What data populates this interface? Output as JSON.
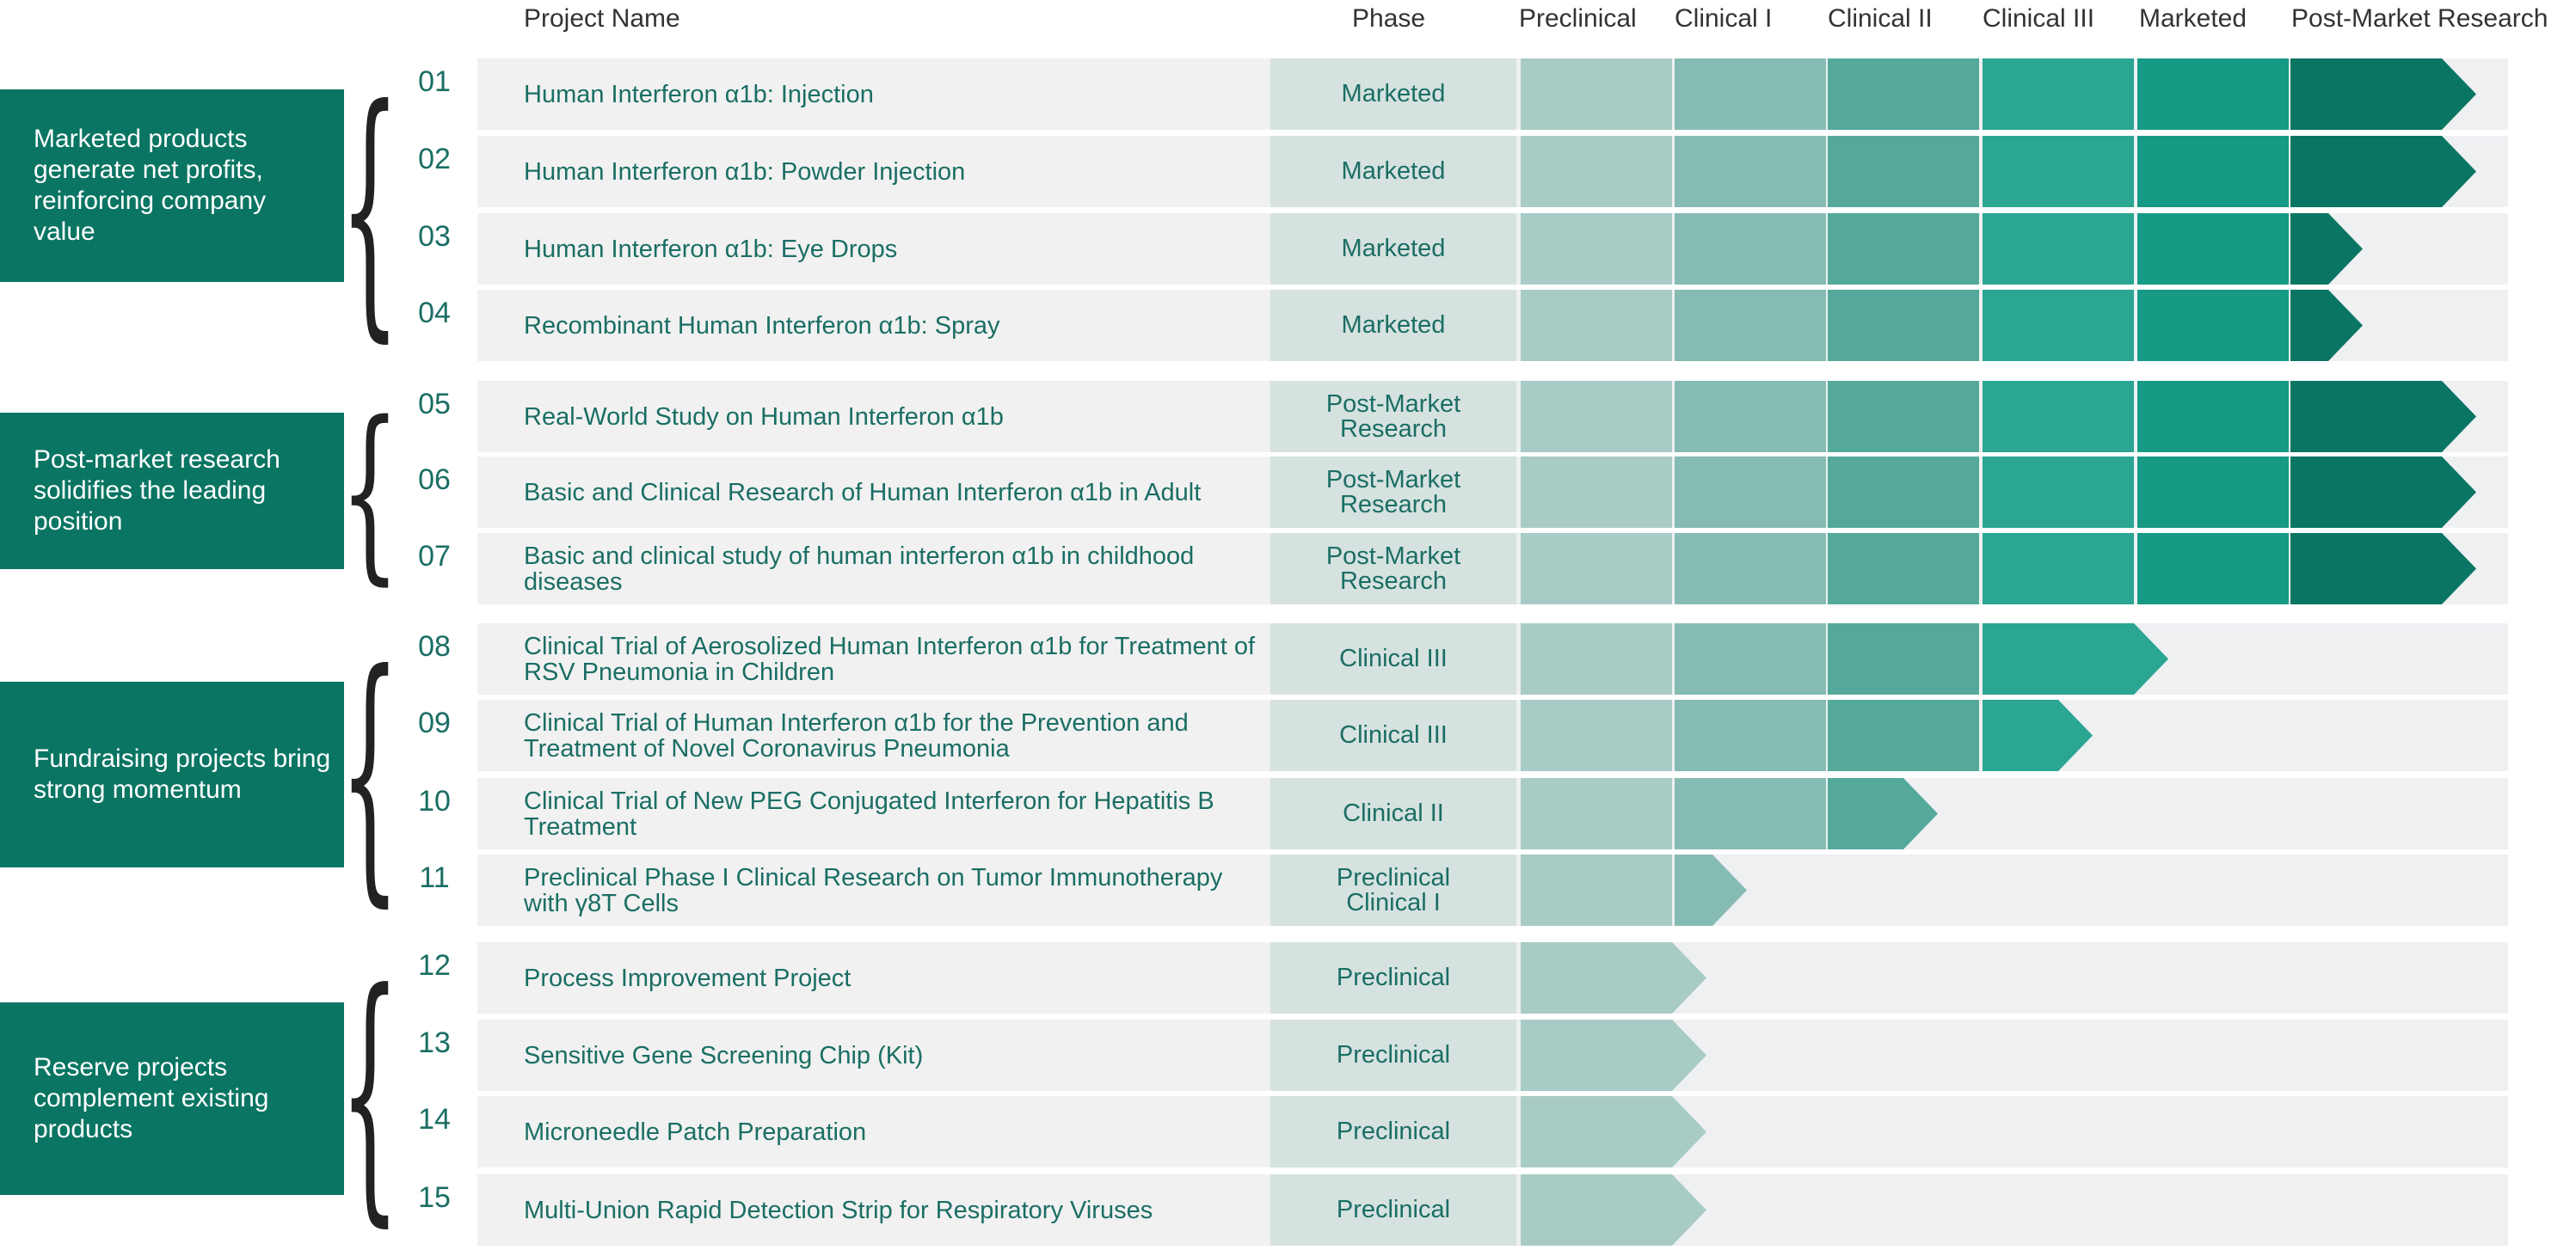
{
  "headers": {
    "project_name": "Project Name",
    "phase": "Phase",
    "stages": [
      "Preclinical",
      "Clinical I",
      "Clinical II",
      "Clinical III",
      "Marketed",
      "Post-Market Research"
    ]
  },
  "colors": {
    "group_box": "#0a7563",
    "row_text": "#1a6e64",
    "stage_fills": [
      "#a8cbc6",
      "#86bbb3",
      "#55a99b",
      "#2aa693",
      "#169a85",
      "#0a7563"
    ]
  },
  "groups": [
    {
      "label": "Marketed products generate net profits, reinforcing company value",
      "rows": [
        0,
        3
      ]
    },
    {
      "label": "Post-market research solidifies the leading position",
      "rows": [
        4,
        6
      ]
    },
    {
      "label": "Fundraising projects bring strong momentum",
      "rows": [
        7,
        10
      ]
    },
    {
      "label": "Reserve projects complement existing products",
      "rows": [
        11,
        14
      ]
    }
  ],
  "chart_data": {
    "type": "bar",
    "title": "",
    "stages": [
      "Preclinical",
      "Clinical I",
      "Clinical II",
      "Clinical III",
      "Marketed",
      "Post-Market Research"
    ],
    "projects": [
      {
        "num": "01",
        "name": "Human Interferon α1b: Injection",
        "phase": "Marketed",
        "progress": 6.0
      },
      {
        "num": "02",
        "name": "Human Interferon α1b: Powder Injection",
        "phase": "Marketed",
        "progress": 6.0
      },
      {
        "num": "03",
        "name": "Human Interferon α1b: Eye Drops",
        "phase": "Marketed",
        "progress": 5.25
      },
      {
        "num": "04",
        "name": "Recombinant Human Interferon α1b: Spray",
        "phase": "Marketed",
        "progress": 5.25
      },
      {
        "num": "05",
        "name": "Real-World Study on Human Interferon α1b",
        "phase": "Post-Market Research",
        "progress": 6.0
      },
      {
        "num": "06",
        "name": "Basic and Clinical Research of Human Interferon α1b in Adult",
        "phase": "Post-Market Research",
        "progress": 6.0
      },
      {
        "num": "07",
        "name": "Basic and clinical study of human interferon α1b in childhood diseases",
        "phase": "Post-Market Research",
        "progress": 6.0
      },
      {
        "num": "08",
        "name": "Clinical Trial of Aerosolized Human Interferon α1b for Treatment of RSV Pneumonia in Children",
        "phase": "Clinical III",
        "progress": 4.0
      },
      {
        "num": "09",
        "name": "Clinical Trial of Human Interferon α1b for the Prevention and Treatment of Novel Coronavirus Pneumonia",
        "phase": "Clinical III",
        "progress": 3.5
      },
      {
        "num": "10",
        "name": "Clinical Trial of New PEG Conjugated Interferon for Hepatitis B Treatment",
        "phase": "Clinical II",
        "progress": 2.5
      },
      {
        "num": "11",
        "name": "Preclinical Phase I Clinical Research on Tumor Immunotherapy with γ8T Cells",
        "phase": "Preclinical Clinical I",
        "progress": 1.25
      },
      {
        "num": "12",
        "name": "Process Improvement Project",
        "phase": "Preclinical",
        "progress": 1.0
      },
      {
        "num": "13",
        "name": "Sensitive Gene Screening Chip (Kit)",
        "phase": "Preclinical",
        "progress": 1.0
      },
      {
        "num": "14",
        "name": "Microneedle Patch Preparation",
        "phase": "Preclinical",
        "progress": 1.0
      },
      {
        "num": "15",
        "name": "Multi-Union Rapid Detection Strip for Respiratory Viruses",
        "phase": "Preclinical",
        "progress": 1.0
      }
    ]
  }
}
